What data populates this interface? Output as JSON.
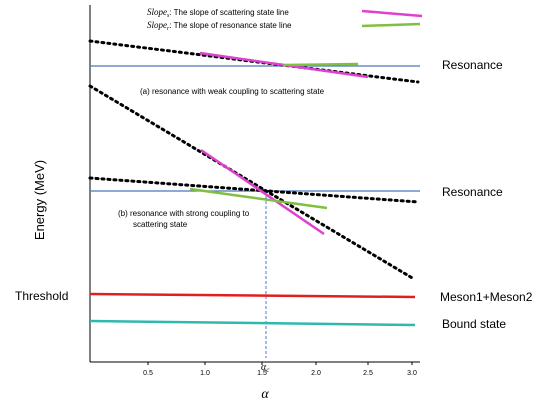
{
  "legend": {
    "items": [
      {
        "symbol": "Slope",
        "subscript": "s",
        "text": ": The slope of scattering state line",
        "color": "#e040d0"
      },
      {
        "symbol": "Slope",
        "subscript": "r",
        "text": ": The slope of resonance state line",
        "color": "#80c040"
      }
    ]
  },
  "labels": {
    "resonance_top": "Resonance",
    "resonance_mid": "Resonance",
    "threshold": "Threshold",
    "meson": "Meson1+Meson2",
    "bound": "Bound state",
    "annotation_a": "(a) resonance with weak coupling to scattering state",
    "annotation_b_line1": "(b) resonance with strong coupling to",
    "annotation_b_line2": "scattering state",
    "alpha_c_symbol": "α",
    "alpha_c_subscript": "c"
  },
  "axes": {
    "ylabel": "Energy (MeV)",
    "xlabel": "α",
    "xticks": [
      "0.5",
      "1.0",
      "1.5",
      "2.0",
      "2.5",
      "3.0"
    ]
  },
  "colors": {
    "blue_line": "#4a78b8",
    "threshold_red": "#e02020",
    "bound_teal": "#30b8b0",
    "magenta": "#e040d0",
    "green": "#80c040",
    "dotted": "#000000",
    "dashed": "#4a78d0"
  }
}
